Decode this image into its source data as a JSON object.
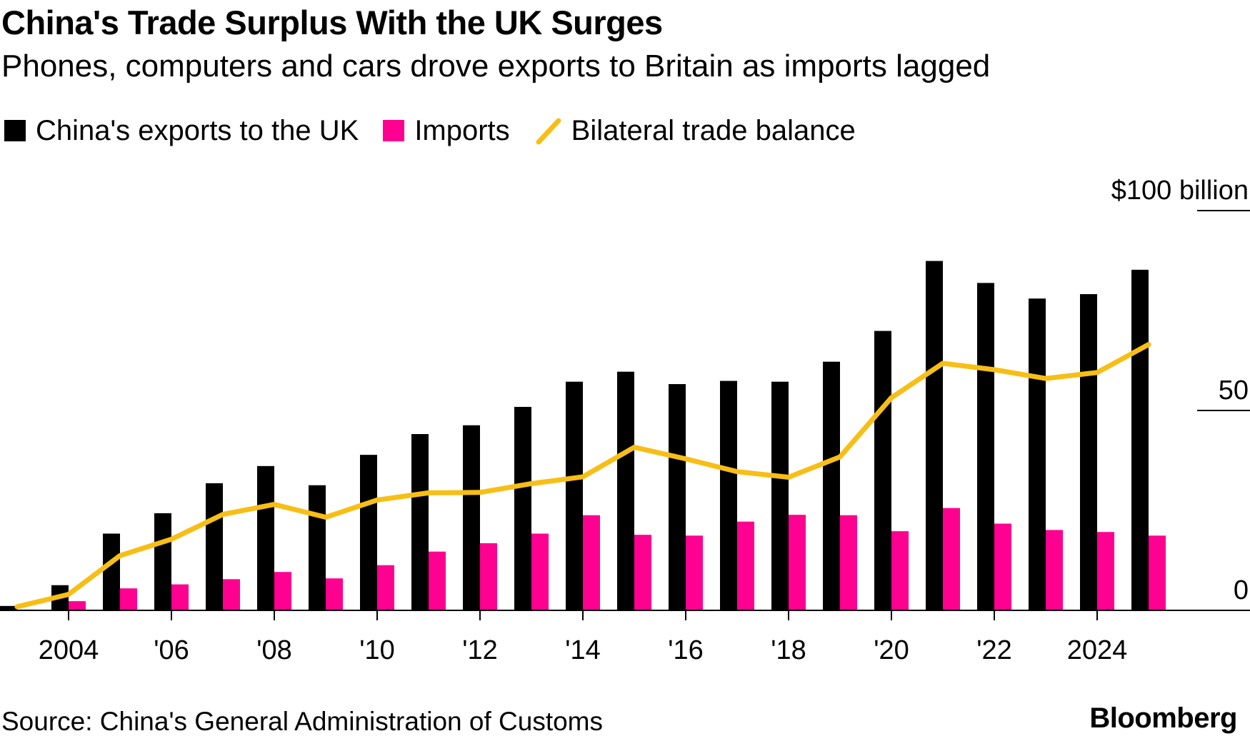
{
  "title": "China's Trade Surplus With the UK Surges",
  "subtitle": "Phones, computers and cars drove exports to Britain as imports lagged",
  "legend": {
    "exports": "China's exports to the UK",
    "imports": "Imports",
    "balance": "Bilateral trade balance"
  },
  "source": "Source: China's General Administration of Customs",
  "brand": "Bloomberg",
  "colors": {
    "exports": "#000000",
    "imports": "#ff0090",
    "balance": "#f7be16"
  },
  "chart_data": {
    "type": "bar",
    "title": "China's Trade Surplus With the UK Surges",
    "ylabel": "$ billion",
    "ylim": [
      0,
      100
    ],
    "yticks": [
      {
        "value": 100,
        "label": "$100 billion"
      },
      {
        "value": 50,
        "label": "50"
      },
      {
        "value": 0,
        "label": "0"
      }
    ],
    "xticks": [
      {
        "year": 2004,
        "label": "2004"
      },
      {
        "year": 2006,
        "label": "'06"
      },
      {
        "year": 2008,
        "label": "'08"
      },
      {
        "year": 2010,
        "label": "'10"
      },
      {
        "year": 2012,
        "label": "'12"
      },
      {
        "year": 2014,
        "label": "'14"
      },
      {
        "year": 2016,
        "label": "'16"
      },
      {
        "year": 2018,
        "label": "'18"
      },
      {
        "year": 2020,
        "label": "'20"
      },
      {
        "year": 2022,
        "label": "'22"
      },
      {
        "year": 2024,
        "label": "2024"
      }
    ],
    "x": [
      2003,
      2004,
      2005,
      2006,
      2007,
      2008,
      2009,
      2010,
      2011,
      2012,
      2013,
      2014,
      2015,
      2016,
      2017,
      2018,
      2019,
      2020,
      2021,
      2022,
      2023,
      2024,
      2025
    ],
    "series": [
      {
        "name": "China's exports to the UK",
        "type": "bar",
        "values": [
          1.1,
          6.3,
          19.2,
          24.3,
          31.8,
          36.1,
          31.3,
          38.9,
          44.1,
          46.3,
          50.9,
          57.2,
          59.7,
          56.6,
          57.4,
          57.2,
          62.2,
          69.9,
          87.4,
          81.9,
          78.0,
          79.1,
          85.2
        ]
      },
      {
        "name": "Imports",
        "type": "bar",
        "values": [
          0.2,
          2.3,
          5.5,
          6.5,
          7.8,
          9.6,
          8.0,
          11.3,
          14.7,
          16.8,
          19.2,
          23.8,
          18.9,
          18.7,
          22.2,
          23.9,
          23.8,
          19.8,
          25.6,
          21.7,
          20.1,
          19.6,
          18.7
        ]
      },
      {
        "name": "Bilateral trade balance",
        "type": "line",
        "values": [
          0.9,
          4.0,
          13.7,
          17.8,
          24.0,
          26.5,
          23.3,
          27.6,
          29.4,
          29.5,
          31.7,
          33.4,
          40.8,
          37.9,
          34.7,
          33.3,
          38.4,
          53.2,
          61.8,
          60.2,
          58.0,
          59.5,
          66.5
        ]
      }
    ]
  }
}
